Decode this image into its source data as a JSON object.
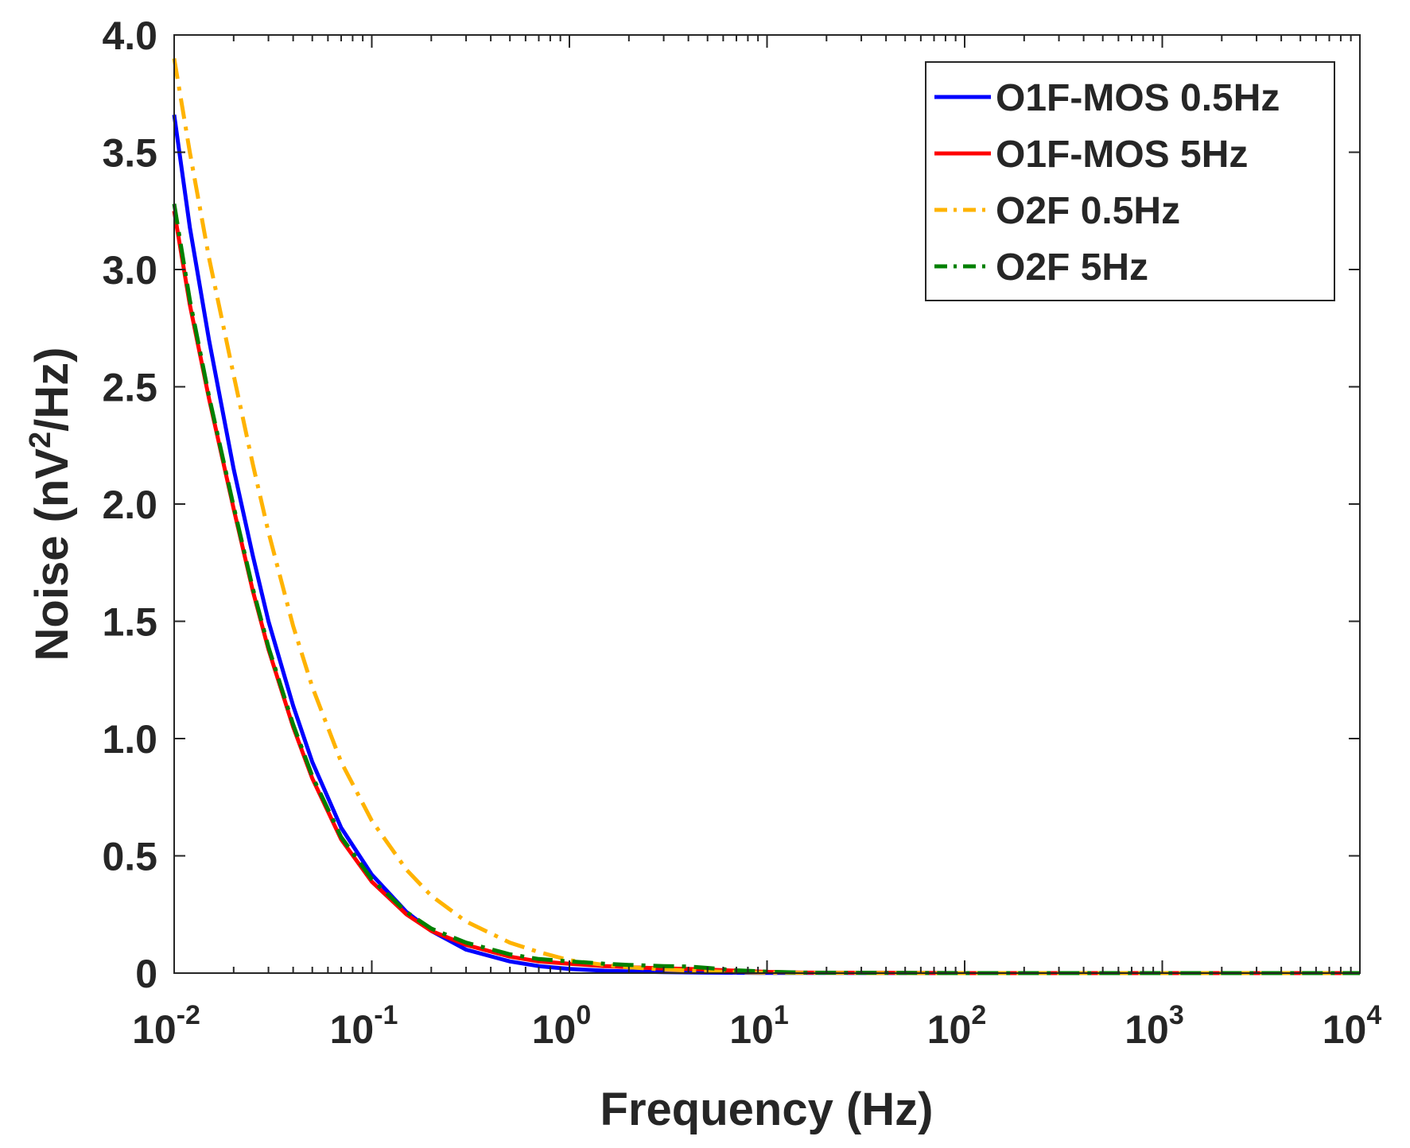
{
  "chart_data": {
    "type": "line",
    "title": "",
    "xlabel": "Frequency (Hz)",
    "ylabel": {
      "prefix": "Noise (nV",
      "sup": "2",
      "suffix": "/Hz)"
    },
    "xscale": "log",
    "xlim_exp": [
      -2,
      4
    ],
    "ylim": [
      0,
      4.0
    ],
    "x_tick_base": "10",
    "x_tick_exponents": [
      "-2",
      "-1",
      "0",
      "1",
      "2",
      "3",
      "4"
    ],
    "y_ticks": [
      0,
      0.5,
      1.0,
      1.5,
      2.0,
      2.5,
      3.0,
      3.5,
      4.0
    ],
    "y_tick_labels": [
      "0",
      "0.5",
      "1.0",
      "1.5",
      "2.0",
      "2.5",
      "3.0",
      "3.5",
      "4.0"
    ],
    "grid": false,
    "legend_position": "top-right",
    "series": [
      {
        "name": "O1F-MOS 0.5Hz",
        "color": "#0000ff",
        "style": "solid",
        "x": [
          0.01,
          0.012,
          0.015,
          0.02,
          0.025,
          0.03,
          0.04,
          0.05,
          0.07,
          0.1,
          0.15,
          0.2,
          0.3,
          0.5,
          0.7,
          1,
          1.5,
          2,
          3,
          5,
          10,
          100,
          1000,
          10000
        ],
        "y": [
          3.66,
          3.18,
          2.7,
          2.15,
          1.78,
          1.5,
          1.14,
          0.9,
          0.62,
          0.42,
          0.26,
          0.18,
          0.1,
          0.05,
          0.03,
          0.018,
          0.01,
          0.007,
          0.004,
          0.002,
          0.001,
          0,
          0,
          0
        ]
      },
      {
        "name": "O1F-MOS 5Hz",
        "color": "#ff0000",
        "style": "solid",
        "x": [
          0.01,
          0.012,
          0.015,
          0.02,
          0.025,
          0.03,
          0.04,
          0.05,
          0.07,
          0.1,
          0.15,
          0.2,
          0.3,
          0.5,
          0.7,
          1,
          1.5,
          2,
          3,
          4,
          5,
          7,
          10,
          15,
          100,
          1000,
          10000
        ],
        "y": [
          3.25,
          2.85,
          2.45,
          1.98,
          1.63,
          1.38,
          1.05,
          0.83,
          0.57,
          0.39,
          0.25,
          0.18,
          0.12,
          0.07,
          0.05,
          0.04,
          0.03,
          0.025,
          0.02,
          0.018,
          0.015,
          0.01,
          0.005,
          0.002,
          0,
          0,
          0
        ]
      },
      {
        "name": "O2F 0.5Hz",
        "color": "#ffb300",
        "style": "dashdot",
        "x": [
          0.01,
          0.012,
          0.015,
          0.02,
          0.025,
          0.03,
          0.04,
          0.05,
          0.07,
          0.1,
          0.15,
          0.2,
          0.3,
          0.5,
          0.7,
          1,
          1.5,
          2,
          3,
          5,
          7,
          10,
          15,
          100,
          1000,
          10000
        ],
        "y": [
          3.9,
          3.5,
          3.05,
          2.55,
          2.17,
          1.88,
          1.48,
          1.22,
          0.9,
          0.65,
          0.44,
          0.33,
          0.22,
          0.13,
          0.09,
          0.055,
          0.035,
          0.025,
          0.015,
          0.008,
          0.004,
          0.002,
          0.001,
          0,
          0,
          0
        ]
      },
      {
        "name": "O2F 5Hz",
        "color": "#008000",
        "style": "dashdot",
        "x": [
          0.01,
          0.012,
          0.015,
          0.02,
          0.025,
          0.03,
          0.04,
          0.05,
          0.07,
          0.1,
          0.15,
          0.2,
          0.3,
          0.5,
          0.7,
          1,
          1.5,
          2,
          3,
          4,
          5,
          7,
          10,
          15,
          100,
          1000,
          10000
        ],
        "y": [
          3.28,
          2.87,
          2.46,
          1.99,
          1.64,
          1.39,
          1.06,
          0.84,
          0.58,
          0.4,
          0.26,
          0.19,
          0.13,
          0.08,
          0.06,
          0.05,
          0.04,
          0.035,
          0.03,
          0.028,
          0.022,
          0.012,
          0.006,
          0.002,
          0,
          0,
          0
        ]
      }
    ]
  }
}
